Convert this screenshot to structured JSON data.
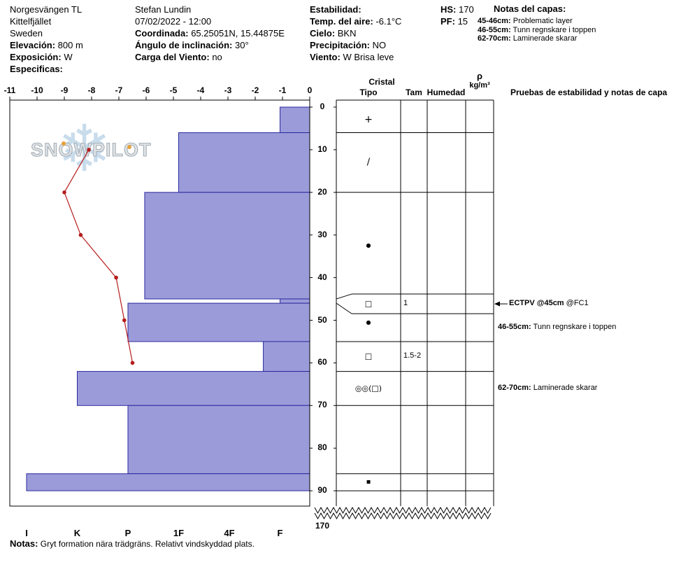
{
  "header": {
    "site": {
      "name": "Norgesvängen TL",
      "area": "Kittelfjället",
      "country": "Sweden",
      "elevation_label": "Elevación:",
      "elevation_value": "800 m",
      "aspect_label": "Exposición:",
      "aspect_value": "W",
      "specifics_label": "Especificas:",
      "specifics_value": ""
    },
    "observer": {
      "name": "Stefan Lundin",
      "datetime": "07/02/2022 - 12:00",
      "coords_label": "Coordinada:",
      "coords_value": "65.25051N, 15.44875E",
      "slope_label": "Ángulo de inclinación:",
      "slope_value": "30°",
      "wind_load_label": "Carga del Viento:",
      "wind_load_value": "no"
    },
    "conditions": {
      "stability_label": "Estabilidad:",
      "air_temp_label": "Temp. del aire:",
      "air_temp_value": "-6.1°C",
      "sky_label": "Cielo:",
      "sky_value": "BKN",
      "precip_label": "Precipitación:",
      "precip_value": "NO",
      "wind_label": "Viento:",
      "wind_value": "W Brisa leve"
    },
    "totals": {
      "hs_label": "HS:",
      "hs_value": "170",
      "pf_label": "PF:",
      "pf_value": "15"
    },
    "layer_notes": {
      "title": "Notas del capas:",
      "items": [
        {
          "range": "45-46cm:",
          "text": " Problematic layer"
        },
        {
          "range": "46-55cm:",
          "text": " Tunn regnskare i toppen"
        },
        {
          "range": "62-70cm:",
          "text": " Laminerade skarar"
        }
      ]
    }
  },
  "logo": {
    "text": "SNOWPILOT",
    "snowflake": "❄"
  },
  "chart_data": {
    "type": "snow-profile",
    "title": "Snow pit profile",
    "temp_axis_ticks": [
      -11,
      -10,
      -9,
      -8,
      -7,
      -6,
      -5,
      -4,
      -3,
      -2,
      -1,
      0
    ],
    "temp_axis_range": [
      -11,
      0
    ],
    "depth_axis_ticks": [
      0,
      10,
      20,
      30,
      40,
      50,
      60,
      70,
      80,
      90
    ],
    "depth_break_label": "170",
    "total_depth_cm": 170,
    "hardness_ticks": [
      "I",
      "K",
      "P",
      "1F",
      "4F",
      "F"
    ],
    "layers": [
      {
        "top_cm": 0,
        "bottom_cm": 6,
        "hardness": "F",
        "symbol": "+",
        "grain_size": ""
      },
      {
        "top_cm": 6,
        "bottom_cm": 20,
        "hardness": "1F",
        "symbol": "/",
        "grain_size": ""
      },
      {
        "top_cm": 20,
        "bottom_cm": 45,
        "hardness": "P-",
        "symbol": "●",
        "grain_size": ""
      },
      {
        "top_cm": 45,
        "bottom_cm": 46,
        "hardness": "F",
        "symbol": "□",
        "grain_size": "1",
        "thin": true
      },
      {
        "top_cm": 46,
        "bottom_cm": 55,
        "hardness": "P",
        "symbol": "●",
        "grain_size": ""
      },
      {
        "top_cm": 55,
        "bottom_cm": 62,
        "hardness": "F+",
        "symbol": "□",
        "grain_size": "1.5-2"
      },
      {
        "top_cm": 62,
        "bottom_cm": 70,
        "hardness": "K",
        "symbol": "◎◎(□)",
        "grain_size": ""
      },
      {
        "top_cm": 70,
        "bottom_cm": 86,
        "hardness": "P",
        "symbol": "",
        "grain_size": ""
      },
      {
        "top_cm": 86,
        "bottom_cm": 90,
        "hardness": "I",
        "symbol": "▪",
        "grain_size": ""
      }
    ],
    "temperature_profile": [
      {
        "depth_cm": 10,
        "temp_c": -8.1
      },
      {
        "depth_cm": 20,
        "temp_c": -9.0
      },
      {
        "depth_cm": 30,
        "temp_c": -8.4
      },
      {
        "depth_cm": 40,
        "temp_c": -7.1
      },
      {
        "depth_cm": 50,
        "temp_c": -6.8
      },
      {
        "depth_cm": 60,
        "temp_c": -6.5
      }
    ],
    "colors": {
      "bar_fill": "#9b9bd9",
      "bar_border": "#2b2ba0",
      "temp_line": "#b51c1c",
      "grid": "#000000"
    }
  },
  "panel": {
    "headers": {
      "cristal": "Cristal",
      "tipo": "Tipo",
      "tam": "Tam",
      "humedad": "Humedad",
      "rho": "ρ",
      "rho_units": "kg/m³",
      "tests": "Pruebas de estabilidad y notas de capa"
    },
    "annotations": [
      {
        "bold": "ECTPV @45cm",
        "text": " @FC1"
      },
      {
        "bold": "46-55cm:",
        "text": " Tunn regnskare i toppen"
      },
      {
        "bold": "62-70cm:",
        "text": " Laminerade skarar"
      }
    ]
  },
  "footer": {
    "notes_label": "Notas:",
    "notes_text": " Gryt formation nära trädgräns. Relativt vindskyddad plats."
  }
}
